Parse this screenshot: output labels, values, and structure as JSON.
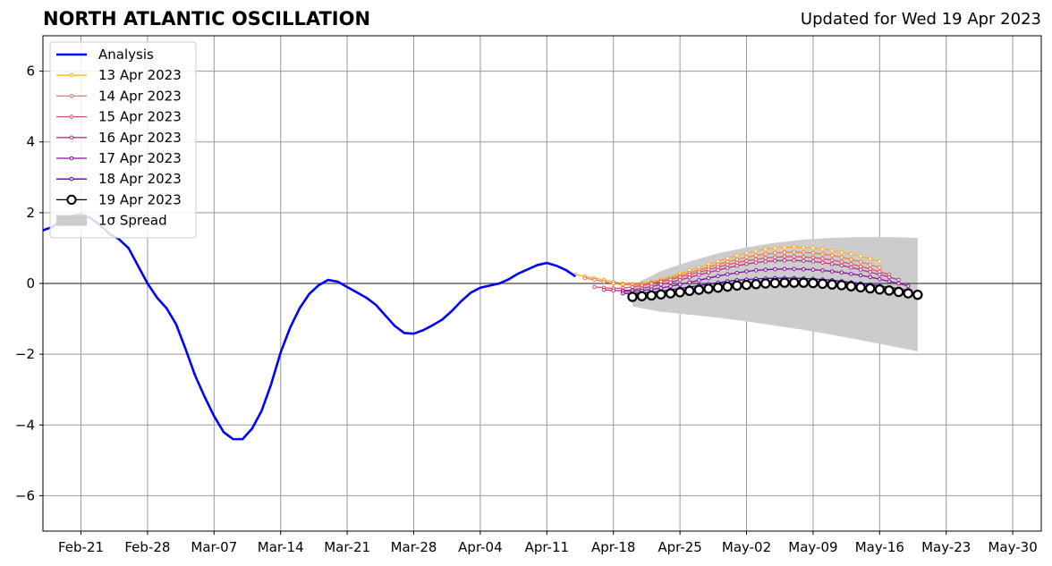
{
  "header": {
    "title": "NORTH ATLANTIC OSCILLATION",
    "subtitle": "Updated for Wed 19 Apr 2023"
  },
  "chart_data": {
    "type": "line",
    "title": "NORTH ATLANTIC OSCILLATION",
    "subtitle": "Updated for Wed 19 Apr 2023",
    "xlabel": "",
    "ylabel": "",
    "x_axis": {
      "type": "date",
      "start": "2023-02-17",
      "end": "2023-06-02",
      "tick_labels": [
        "Feb-21",
        "Feb-28",
        "Mar-07",
        "Mar-14",
        "Mar-21",
        "Mar-28",
        "Apr-04",
        "Apr-11",
        "Apr-18",
        "Apr-25",
        "May-02",
        "May-09",
        "May-16",
        "May-23",
        "May-30"
      ],
      "tick_dates": [
        "2023-02-21",
        "2023-02-28",
        "2023-03-07",
        "2023-03-14",
        "2023-03-21",
        "2023-03-28",
        "2023-04-04",
        "2023-04-11",
        "2023-04-18",
        "2023-04-25",
        "2023-05-02",
        "2023-05-09",
        "2023-05-16",
        "2023-05-23",
        "2023-05-30"
      ]
    },
    "ylim": [
      -7,
      7
    ],
    "y_ticks": [
      -6,
      -4,
      -2,
      0,
      2,
      4,
      6
    ],
    "y_tick_labels": [
      "−6",
      "−4",
      "−2",
      "0",
      "2",
      "4",
      "6"
    ],
    "grid": true,
    "zero_line": true,
    "legend_position": "top-left",
    "legend": [
      "Analysis",
      "13 Apr 2023",
      "14 Apr 2023",
      "15 Apr 2023",
      "16 Apr 2023",
      "17 Apr 2023",
      "18 Apr 2023",
      "19 Apr 2023",
      "1σ Spread"
    ],
    "analysis": {
      "name": "Analysis",
      "color": "#0000ff",
      "dates": [
        "2023-02-17",
        "2023-02-18",
        "2023-02-19",
        "2023-02-20",
        "2023-02-21",
        "2023-02-22",
        "2023-02-23",
        "2023-02-24",
        "2023-02-25",
        "2023-02-26",
        "2023-02-27",
        "2023-02-28",
        "2023-03-01",
        "2023-03-02",
        "2023-03-03",
        "2023-03-04",
        "2023-03-05",
        "2023-03-06",
        "2023-03-07",
        "2023-03-08",
        "2023-03-09",
        "2023-03-10",
        "2023-03-11",
        "2023-03-12",
        "2023-03-13",
        "2023-03-14",
        "2023-03-15",
        "2023-03-16",
        "2023-03-17",
        "2023-03-18",
        "2023-03-19",
        "2023-03-20",
        "2023-03-21",
        "2023-03-22",
        "2023-03-23",
        "2023-03-24",
        "2023-03-25",
        "2023-03-26",
        "2023-03-27",
        "2023-03-28",
        "2023-03-29",
        "2023-03-30",
        "2023-03-31",
        "2023-04-01",
        "2023-04-02",
        "2023-04-03",
        "2023-04-04",
        "2023-04-05",
        "2023-04-06",
        "2023-04-07",
        "2023-04-08",
        "2023-04-09",
        "2023-04-10",
        "2023-04-11",
        "2023-04-12",
        "2023-04-13",
        "2023-04-14"
      ],
      "values": [
        1.5,
        1.6,
        1.8,
        1.9,
        1.95,
        1.85,
        1.65,
        1.4,
        1.25,
        1.0,
        0.5,
        0.0,
        -0.4,
        -0.7,
        -1.15,
        -1.85,
        -2.6,
        -3.2,
        -3.75,
        -4.2,
        -4.4,
        -4.4,
        -4.1,
        -3.6,
        -2.85,
        -1.95,
        -1.25,
        -0.7,
        -0.3,
        -0.05,
        0.1,
        0.05,
        -0.1,
        -0.25,
        -0.4,
        -0.6,
        -0.9,
        -1.2,
        -1.4,
        -1.42,
        -1.32,
        -1.18,
        -1.02,
        -0.78,
        -0.5,
        -0.26,
        -0.12,
        -0.06,
        0.0,
        0.12,
        0.28,
        0.4,
        0.52,
        0.58,
        0.5,
        0.38,
        0.2
      ]
    },
    "forecasts": [
      {
        "name": "13 Apr 2023",
        "color": "#fbb02c",
        "start": "2023-04-14",
        "values": [
          0.25,
          0.2,
          0.15,
          0.1,
          0.05,
          0.0,
          -0.02,
          0.0,
          0.05,
          0.12,
          0.2,
          0.28,
          0.37,
          0.45,
          0.54,
          0.63,
          0.71,
          0.79,
          0.86,
          0.92,
          0.97,
          1.0,
          1.02,
          1.03,
          1.02,
          1.0,
          0.97,
          0.93,
          0.88,
          0.83,
          0.77,
          0.7,
          0.62
        ]
      },
      {
        "name": "14 Apr 2023",
        "color": "#f47b43",
        "start": "2023-04-15",
        "values": [
          0.15,
          0.1,
          0.05,
          0.0,
          -0.03,
          -0.04,
          -0.02,
          0.02,
          0.08,
          0.15,
          0.22,
          0.3,
          0.38,
          0.46,
          0.54,
          0.61,
          0.68,
          0.74,
          0.79,
          0.83,
          0.86,
          0.88,
          0.89,
          0.88,
          0.86,
          0.83,
          0.79,
          0.74,
          0.68,
          0.61,
          0.53,
          0.45
        ]
      },
      {
        "name": "15 Apr 2023",
        "color": "#dd5167",
        "start": "2023-04-16",
        "values": [
          -0.1,
          -0.12,
          -0.14,
          -0.13,
          -0.1,
          -0.06,
          -0.01,
          0.05,
          0.11,
          0.18,
          0.25,
          0.32,
          0.39,
          0.46,
          0.53,
          0.59,
          0.64,
          0.68,
          0.72,
          0.74,
          0.76,
          0.76,
          0.75,
          0.73,
          0.7,
          0.66,
          0.61,
          0.55,
          0.48,
          0.41,
          0.33,
          0.25
        ]
      },
      {
        "name": "16 Apr 2023",
        "color": "#b93289",
        "start": "2023-04-17",
        "values": [
          -0.18,
          -0.2,
          -0.2,
          -0.18,
          -0.14,
          -0.09,
          -0.03,
          0.03,
          0.1,
          0.17,
          0.24,
          0.31,
          0.38,
          0.44,
          0.5,
          0.55,
          0.59,
          0.62,
          0.64,
          0.65,
          0.65,
          0.64,
          0.62,
          0.59,
          0.55,
          0.51,
          0.45,
          0.39,
          0.32,
          0.25,
          0.18,
          0.1
        ]
      },
      {
        "name": "17 Apr 2023",
        "color": "#8a0da3",
        "start": "2023-04-19",
        "values": [
          -0.22,
          -0.22,
          -0.2,
          -0.17,
          -0.13,
          -0.08,
          -0.03,
          0.03,
          0.09,
          0.15,
          0.21,
          0.26,
          0.3,
          0.34,
          0.37,
          0.39,
          0.4,
          0.41,
          0.41,
          0.4,
          0.39,
          0.37,
          0.34,
          0.31,
          0.27,
          0.23,
          0.18,
          0.12,
          0.06,
          0.0,
          -0.07
        ]
      },
      {
        "name": "18 Apr 2023",
        "color": "#5402a3",
        "start": "2023-04-19",
        "values": [
          -0.28,
          -0.28,
          -0.27,
          -0.25,
          -0.22,
          -0.18,
          -0.14,
          -0.1,
          -0.06,
          -0.02,
          0.02,
          0.06,
          0.09,
          0.11,
          0.13,
          0.14,
          0.15,
          0.15,
          0.15,
          0.14,
          0.13,
          0.11,
          0.09,
          0.06,
          0.03,
          0.0,
          -0.03,
          -0.07,
          -0.11,
          -0.15,
          -0.2
        ]
      },
      {
        "name": "19 Apr 2023",
        "color": "#000000",
        "start": "2023-04-20",
        "values": [
          -0.38,
          -0.36,
          -0.34,
          -0.31,
          -0.28,
          -0.25,
          -0.21,
          -0.18,
          -0.15,
          -0.12,
          -0.09,
          -0.06,
          -0.04,
          -0.02,
          0.0,
          0.01,
          0.02,
          0.02,
          0.02,
          0.01,
          -0.01,
          -0.03,
          -0.05,
          -0.08,
          -0.11,
          -0.14,
          -0.17,
          -0.2,
          -0.24,
          -0.28,
          -0.32
        ]
      }
    ],
    "spread": {
      "name": "1σ Spread",
      "color": "#cccccc",
      "dates": [
        "2023-04-20",
        "2023-04-23",
        "2023-04-26",
        "2023-04-29",
        "2023-05-02",
        "2023-05-05",
        "2023-05-08",
        "2023-05-11",
        "2023-05-14",
        "2023-05-17",
        "2023-05-20"
      ],
      "upper": [
        -0.05,
        0.35,
        0.62,
        0.85,
        1.02,
        1.15,
        1.24,
        1.29,
        1.31,
        1.31,
        1.29
      ],
      "lower": [
        -0.65,
        -0.8,
        -0.88,
        -0.97,
        -1.07,
        -1.19,
        -1.31,
        -1.45,
        -1.6,
        -1.76,
        -1.92
      ]
    }
  }
}
